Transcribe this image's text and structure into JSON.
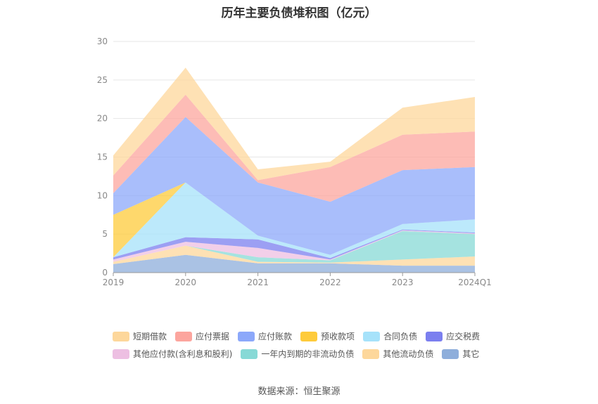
{
  "chart_data": {
    "type": "area",
    "title": "历年主要负债堆积图（亿元）",
    "x": [
      "2019",
      "2020",
      "2021",
      "2022",
      "2023",
      "2024Q1"
    ],
    "ylim": [
      0,
      30
    ],
    "yticks": [
      0,
      5,
      10,
      15,
      20,
      25,
      30
    ],
    "grid": true,
    "legend_position": "bottom",
    "stacked": true,
    "series": [
      {
        "name": "其它",
        "color": "#8eaedb",
        "values": [
          1.1,
          2.3,
          1.2,
          1.2,
          0.9,
          0.9
        ]
      },
      {
        "name": "其他流动负债",
        "color": "#fdd79b",
        "values": [
          0.3,
          1.2,
          0.2,
          0.1,
          0.8,
          1.2
        ]
      },
      {
        "name": "一年内到期的非流动负债",
        "color": "#87d9d6",
        "values": [
          0.0,
          0.0,
          0.6,
          0.3,
          3.7,
          2.9
        ]
      },
      {
        "name": "其他应付款(含利息和股利)",
        "color": "#edbfe2",
        "values": [
          0.3,
          0.5,
          1.2,
          0.1,
          0.1,
          0.1
        ]
      },
      {
        "name": "应交税费",
        "color": "#7b7fef",
        "values": [
          0.3,
          0.6,
          1.1,
          0.2,
          0.1,
          0.1
        ]
      },
      {
        "name": "合同负债",
        "color": "#a6e2fa",
        "values": [
          0.0,
          7.1,
          0.5,
          0.4,
          0.7,
          1.7
        ]
      },
      {
        "name": "预收款项",
        "color": "#fecb3b",
        "values": [
          5.5,
          0.0,
          0.0,
          0.0,
          0.0,
          0.0
        ]
      },
      {
        "name": "应付账款",
        "color": "#8ca8fa",
        "values": [
          2.8,
          8.5,
          6.9,
          6.9,
          7.0,
          6.8
        ]
      },
      {
        "name": "应付票据",
        "color": "#fca59e",
        "values": [
          2.3,
          2.9,
          0.3,
          4.5,
          4.6,
          4.6
        ]
      },
      {
        "name": "短期借款",
        "color": "#fdd79b",
        "values": [
          2.6,
          3.5,
          1.4,
          0.7,
          3.5,
          4.5
        ]
      }
    ]
  },
  "legend": {
    "items": [
      {
        "label": "短期借款",
        "color": "#fdd79b"
      },
      {
        "label": "应付票据",
        "color": "#fca59e"
      },
      {
        "label": "应付账款",
        "color": "#8ca8fa"
      },
      {
        "label": "预收款项",
        "color": "#fecb3b"
      },
      {
        "label": "合同负债",
        "color": "#a6e2fa"
      },
      {
        "label": "应交税费",
        "color": "#7b7fef"
      },
      {
        "label": "其他应付款(含利息和股利)",
        "color": "#edbfe2"
      },
      {
        "label": "一年内到期的非流动负债",
        "color": "#87d9d6"
      },
      {
        "label": "其他流动负债",
        "color": "#fdd79b"
      },
      {
        "label": "其它",
        "color": "#8eaedb"
      }
    ]
  },
  "source": "数据来源：恒生聚源"
}
